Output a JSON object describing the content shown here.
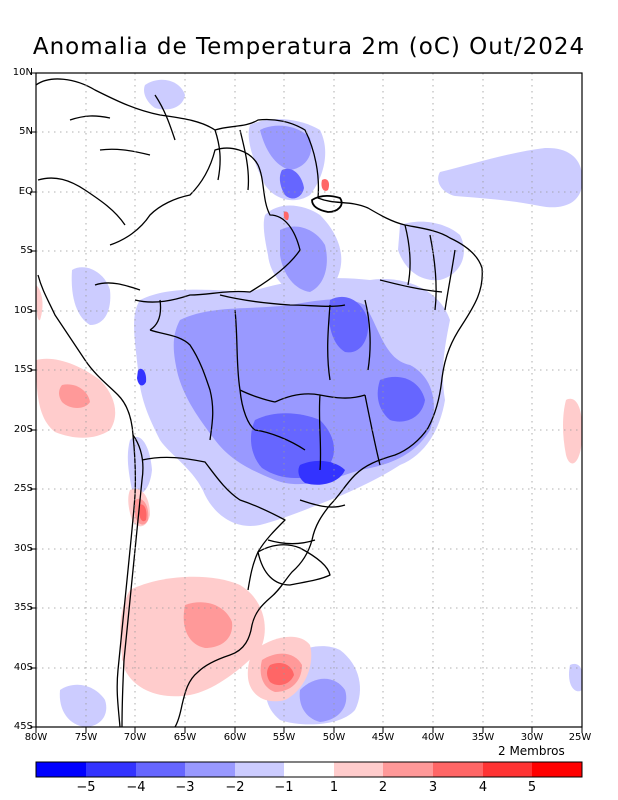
{
  "map": {
    "title": "Anomalia de Temperatura 2m (oC) Out/2024",
    "members_label": "2 Membros",
    "lat_ticks": [
      "10N",
      "5N",
      "EQ",
      "5S",
      "10S",
      "15S",
      "20S",
      "25S",
      "30S",
      "35S",
      "40S",
      "45S"
    ],
    "lon_ticks": [
      "80W",
      "75W",
      "70W",
      "65W",
      "60W",
      "55W",
      "50W",
      "45W",
      "40W",
      "35W",
      "30W",
      "25W"
    ],
    "colorbar": {
      "tick_labels": [
        "-5",
        "-4",
        "-3",
        "-2",
        "-1",
        "1",
        "2",
        "3",
        "4",
        "5"
      ],
      "colors": [
        "#0000ff",
        "#3333ff",
        "#6666ff",
        "#9999ff",
        "#ccccff",
        "#ffffff",
        "#ffcccc",
        "#ff9999",
        "#ff6666",
        "#ff3333",
        "#ff0000"
      ]
    }
  }
}
